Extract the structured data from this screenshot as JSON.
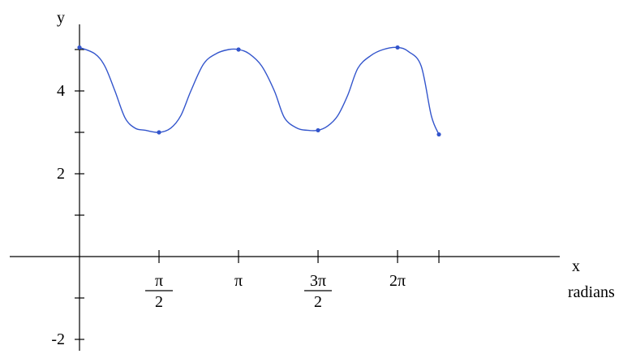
{
  "chart_data": {
    "type": "line",
    "title": "",
    "xlabel": "x",
    "xlabel_unit": "radians",
    "ylabel": "y",
    "xlim": [
      0,
      7.3
    ],
    "ylim": [
      -2.9,
      5.7
    ],
    "grid": false,
    "line_color": "#3355cc",
    "x_ticks": [
      {
        "value": 1.5708,
        "num": "π",
        "den": "2"
      },
      {
        "value": 3.1416,
        "num": "π",
        "den": ""
      },
      {
        "value": 4.7124,
        "num": "3π",
        "den": "2"
      },
      {
        "value": 6.2832,
        "num": "2π",
        "den": ""
      }
    ],
    "x_minor_ticks": [
      7.1
    ],
    "y_ticks": [
      {
        "value": 4,
        "label": "4"
      },
      {
        "value": 2,
        "label": "2"
      },
      {
        "value": -2,
        "label": "-2"
      }
    ],
    "y_minor_ticks": [
      5,
      3,
      1,
      -1
    ],
    "series": [
      {
        "x": [
          0,
          0.3,
          0.5,
          0.7,
          0.9,
          1.1,
          1.3,
          1.5708,
          1.8,
          2.0,
          2.2,
          2.45,
          2.7,
          2.95,
          3.1416,
          3.35,
          3.6,
          3.85,
          4.05,
          4.3,
          4.5,
          4.7124,
          4.9,
          5.1,
          5.3,
          5.5,
          5.75,
          6.0,
          6.2832,
          6.5,
          6.75,
          6.95,
          7.1
        ],
        "y": [
          5.05,
          4.9,
          4.6,
          4.0,
          3.35,
          3.1,
          3.05,
          3.0,
          3.1,
          3.4,
          4.0,
          4.65,
          4.9,
          5.0,
          5.0,
          4.9,
          4.6,
          4.0,
          3.35,
          3.1,
          3.05,
          3.05,
          3.15,
          3.4,
          3.9,
          4.55,
          4.85,
          5.0,
          5.05,
          4.95,
          4.6,
          3.4,
          2.95
        ]
      }
    ],
    "marked_points": {
      "x": [
        0,
        1.5708,
        3.1416,
        4.7124,
        6.2832,
        7.1
      ],
      "y": [
        5.05,
        3.0,
        5.0,
        3.05,
        5.05,
        2.95
      ]
    }
  }
}
